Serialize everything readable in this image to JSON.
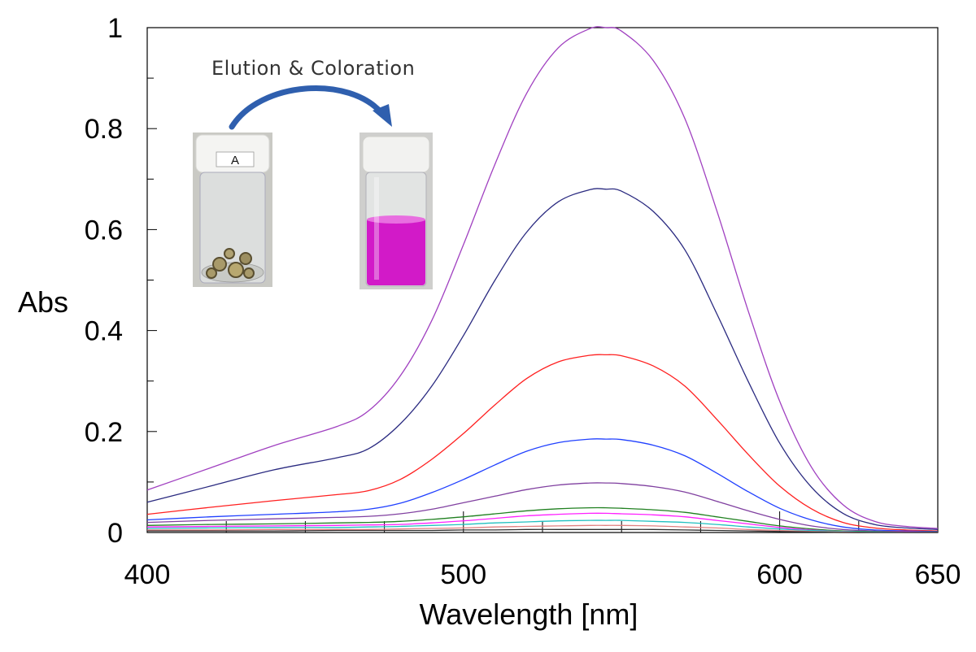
{
  "chart_data": {
    "type": "line",
    "xlabel": "Wavelength [nm]",
    "ylabel": "Abs",
    "xlim": [
      400,
      650
    ],
    "ylim": [
      0,
      1
    ],
    "x_ticks": [
      400,
      500,
      600,
      650
    ],
    "x_tick_labels": [
      "400",
      "500",
      "600",
      "650"
    ],
    "y_ticks": [
      0,
      0.2,
      0.4,
      0.6,
      0.8,
      1
    ],
    "y_tick_labels": [
      "0",
      "0.2",
      "0.4",
      "0.6",
      "0.8",
      "1"
    ],
    "grid": false,
    "legend": false,
    "x": [
      400,
      420,
      440,
      460,
      470,
      480,
      490,
      500,
      510,
      520,
      530,
      540,
      545,
      550,
      560,
      570,
      580,
      590,
      600,
      610,
      620,
      630,
      640,
      650
    ],
    "series": [
      {
        "color": "#a040c0",
        "values": [
          0.084,
          0.128,
          0.172,
          0.21,
          0.241,
          0.31,
          0.42,
          0.57,
          0.73,
          0.87,
          0.96,
          0.998,
          1.0,
          0.993,
          0.935,
          0.82,
          0.64,
          0.44,
          0.26,
          0.13,
          0.055,
          0.022,
          0.012,
          0.008
        ]
      },
      {
        "color": "#2a2a80",
        "values": [
          0.06,
          0.092,
          0.124,
          0.148,
          0.166,
          0.215,
          0.29,
          0.39,
          0.5,
          0.595,
          0.655,
          0.679,
          0.68,
          0.676,
          0.636,
          0.56,
          0.435,
          0.3,
          0.177,
          0.09,
          0.038,
          0.016,
          0.009,
          0.006
        ]
      },
      {
        "color": "#ff2020",
        "values": [
          0.036,
          0.05,
          0.063,
          0.075,
          0.083,
          0.105,
          0.145,
          0.196,
          0.253,
          0.305,
          0.338,
          0.351,
          0.352,
          0.35,
          0.33,
          0.29,
          0.225,
          0.155,
          0.092,
          0.047,
          0.02,
          0.009,
          0.005,
          0.003
        ]
      },
      {
        "color": "#2040ff",
        "values": [
          0.025,
          0.031,
          0.036,
          0.041,
          0.046,
          0.058,
          0.079,
          0.105,
          0.134,
          0.161,
          0.178,
          0.185,
          0.185,
          0.184,
          0.173,
          0.152,
          0.118,
          0.081,
          0.048,
          0.025,
          0.011,
          0.005,
          0.003,
          0.002
        ]
      },
      {
        "color": "#8040a0",
        "values": [
          0.02,
          0.024,
          0.027,
          0.03,
          0.032,
          0.037,
          0.046,
          0.059,
          0.072,
          0.085,
          0.094,
          0.098,
          0.098,
          0.097,
          0.091,
          0.08,
          0.062,
          0.043,
          0.026,
          0.013,
          0.006,
          0.003,
          0.002,
          0.001
        ]
      },
      {
        "color": "#208020",
        "values": [
          0.014,
          0.016,
          0.017,
          0.019,
          0.02,
          0.022,
          0.026,
          0.031,
          0.037,
          0.043,
          0.047,
          0.049,
          0.049,
          0.048,
          0.045,
          0.04,
          0.031,
          0.022,
          0.013,
          0.007,
          0.003,
          0.002,
          0.001,
          0.001
        ]
      },
      {
        "color": "#ff20ff",
        "values": [
          0.011,
          0.012,
          0.013,
          0.014,
          0.015,
          0.016,
          0.019,
          0.023,
          0.028,
          0.033,
          0.036,
          0.038,
          0.038,
          0.037,
          0.035,
          0.031,
          0.024,
          0.017,
          0.01,
          0.005,
          0.002,
          0.001,
          0.001,
          0.0
        ]
      },
      {
        "color": "#20c0c0",
        "values": [
          0.008,
          0.009,
          0.01,
          0.01,
          0.011,
          0.012,
          0.014,
          0.016,
          0.019,
          0.021,
          0.023,
          0.024,
          0.024,
          0.024,
          0.022,
          0.02,
          0.016,
          0.011,
          0.007,
          0.004,
          0.002,
          0.001,
          0.0,
          0.0
        ]
      },
      {
        "color": "#e08080",
        "values": [
          0.005,
          0.005,
          0.006,
          0.006,
          0.006,
          0.007,
          0.008,
          0.009,
          0.011,
          0.012,
          0.013,
          0.014,
          0.014,
          0.014,
          0.013,
          0.011,
          0.009,
          0.006,
          0.004,
          0.002,
          0.001,
          0.0,
          0.0,
          0.0
        ]
      },
      {
        "color": "#303030",
        "values": [
          0.003,
          0.003,
          0.003,
          0.004,
          0.004,
          0.004,
          0.004,
          0.005,
          0.005,
          0.006,
          0.006,
          0.006,
          0.006,
          0.006,
          0.006,
          0.005,
          0.004,
          0.003,
          0.002,
          0.001,
          0.0,
          0.0,
          0.0,
          0.0
        ]
      }
    ],
    "annotation": "Elution & Coloration",
    "inset_vial_label": "A"
  }
}
